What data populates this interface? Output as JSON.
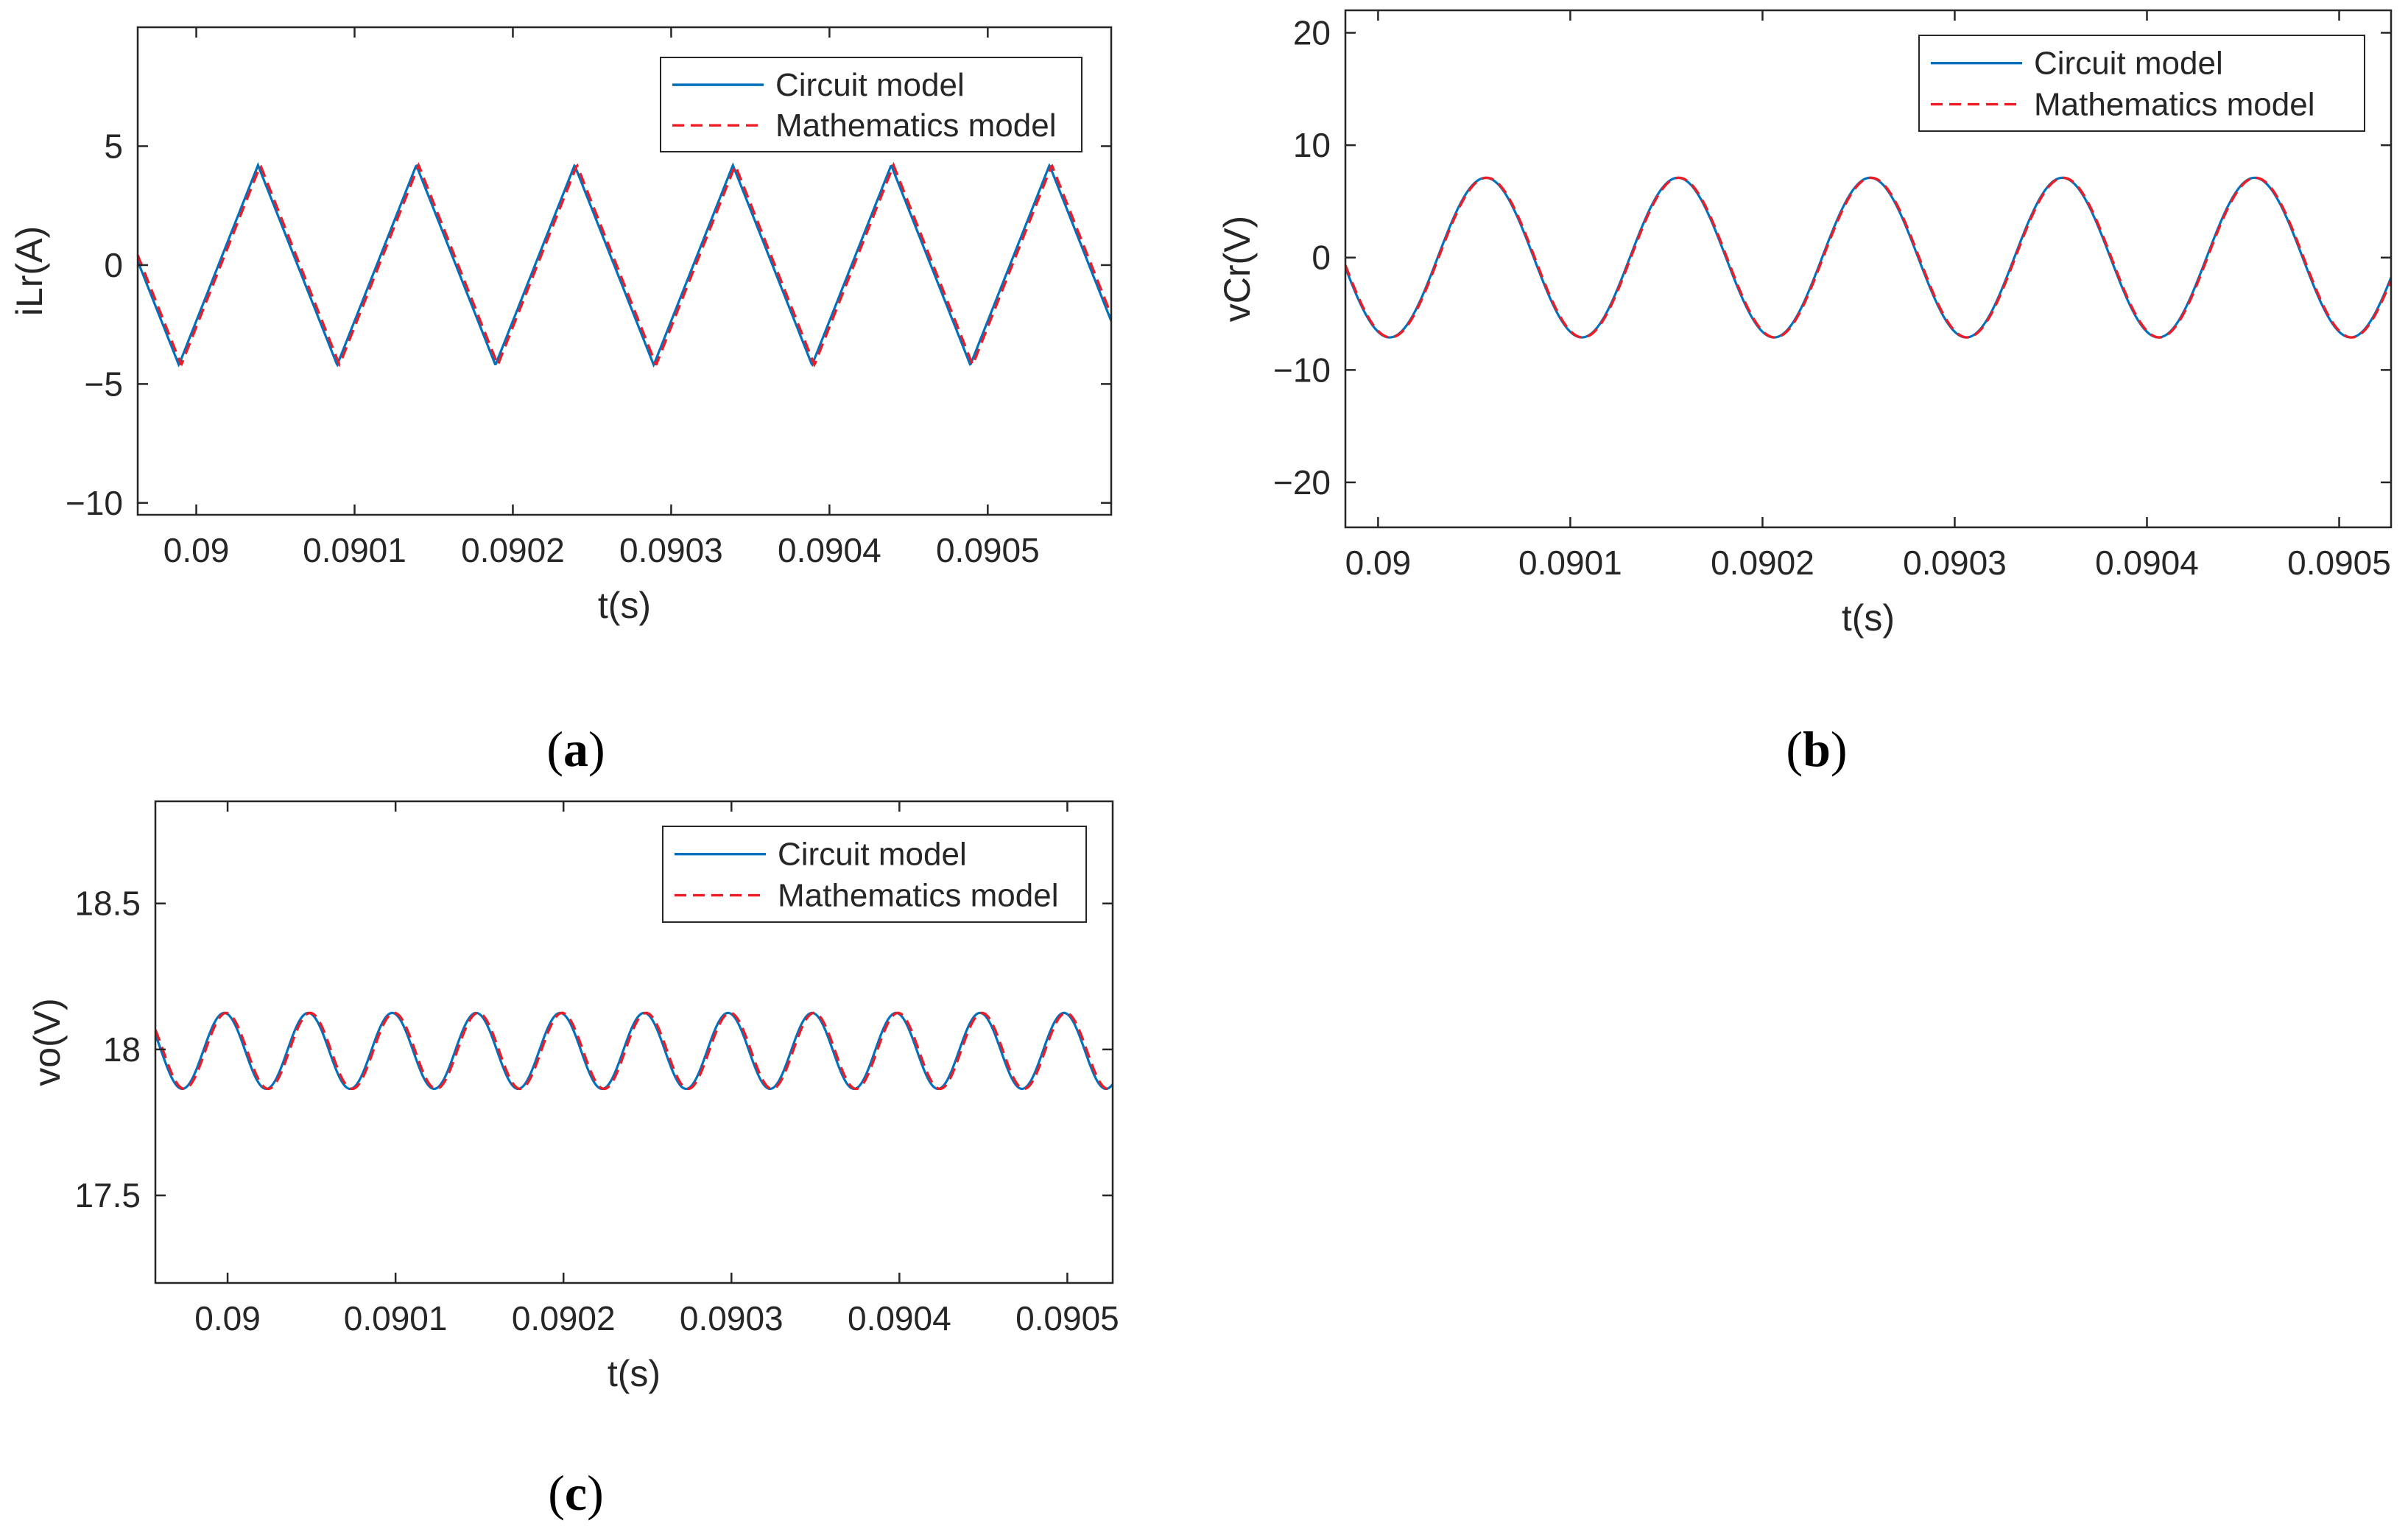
{
  "colors": {
    "circuit": "#0072BD",
    "math": "#EE1C25",
    "axes": "#262626",
    "legend_border": "#262626"
  },
  "chart_data": [
    {
      "type": "line",
      "panel": "a",
      "xlabel": "t(s)",
      "ylabel": "iLr(A)",
      "xlim": [
        0.089963,
        0.090578
      ],
      "ylim": [
        -10.5,
        10
      ],
      "xticks": [
        0.09,
        0.0901,
        0.0902,
        0.0903,
        0.0904,
        0.0905
      ],
      "xtick_labels": [
        "0.09",
        "0.0901",
        "0.0902",
        "0.0903",
        "0.0904",
        "0.0905"
      ],
      "yticks": [
        -10,
        -5,
        0,
        5
      ],
      "ytick_labels": [
        "−10",
        "−5",
        "0",
        "5"
      ],
      "legend": {
        "location": "top-right",
        "entries": [
          "Circuit model",
          "Mathematics model"
        ]
      },
      "waveform": {
        "shape": "triangular",
        "period": 0.0001,
        "amplitude": 4.2,
        "offset": 0,
        "peak_t": 0.090039,
        "math_delay": 1.5e-06
      },
      "series": [
        {
          "name": "Circuit model",
          "style": "solid"
        },
        {
          "name": "Mathematics model",
          "style": "dashed"
        }
      ]
    },
    {
      "type": "line",
      "panel": "b",
      "xlabel": "t(s)",
      "ylabel": "vCr(V)",
      "xlim": [
        0.089983,
        0.090527
      ],
      "ylim": [
        -24,
        22
      ],
      "xticks": [
        0.09,
        0.0901,
        0.0902,
        0.0903,
        0.0904,
        0.0905
      ],
      "xtick_labels": [
        "0.09",
        "0.0901",
        "0.0902",
        "0.0903",
        "0.0904",
        "0.0905"
      ],
      "yticks": [
        -20,
        -10,
        0,
        10,
        20
      ],
      "ytick_labels": [
        "−20",
        "−10",
        "0",
        "10",
        "20"
      ],
      "legend": {
        "location": "top-right",
        "entries": [
          "Circuit model",
          "Mathematics model"
        ]
      },
      "waveform": {
        "shape": "sine",
        "period": 0.0001,
        "amplitude": 7.1,
        "offset": 0,
        "peak_t": 0.090056,
        "math_delay": 5e-07
      },
      "series": [
        {
          "name": "Circuit model",
          "style": "solid"
        },
        {
          "name": "Mathematics model",
          "style": "dashed"
        }
      ]
    },
    {
      "type": "line",
      "panel": "c",
      "xlabel": "t(s)",
      "ylabel": "vo(V)",
      "xlim": [
        0.089957,
        0.090527
      ],
      "ylim": [
        17.2,
        18.85
      ],
      "xticks": [
        0.09,
        0.0901,
        0.0902,
        0.0903,
        0.0904,
        0.0905
      ],
      "xtick_labels": [
        "0.09",
        "0.0901",
        "0.0902",
        "0.0903",
        "0.0904",
        "0.0905"
      ],
      "yticks": [
        17.5,
        18,
        18.5
      ],
      "ytick_labels": [
        "17.5",
        "18",
        "18.5"
      ],
      "legend": {
        "location": "top-right",
        "entries": [
          "Circuit model",
          "Mathematics model"
        ]
      },
      "waveform": {
        "shape": "sine",
        "period": 5e-05,
        "amplitude": 0.13,
        "offset": 17.995,
        "peak_t": 0.089998,
        "math_delay": 1.2e-06
      },
      "series": [
        {
          "name": "Circuit model",
          "style": "solid"
        },
        {
          "name": "Mathematics model",
          "style": "dashed"
        }
      ]
    }
  ],
  "captions": [
    {
      "panel": "a",
      "open": "(",
      "letter": "a",
      "close": ")"
    },
    {
      "panel": "b",
      "open": "(",
      "letter": "b",
      "close": ")"
    },
    {
      "panel": "c",
      "open": "(",
      "letter": "c",
      "close": ")"
    }
  ]
}
